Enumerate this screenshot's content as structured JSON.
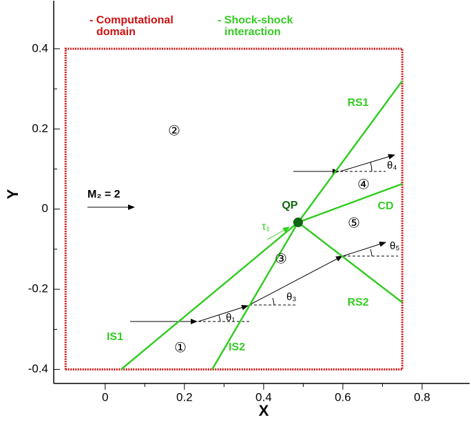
{
  "chart_data": {
    "type": "line",
    "xlabel": "X",
    "ylabel": "Y",
    "xlim": [
      -0.13,
      0.92
    ],
    "ylim": [
      -0.435,
      0.52
    ],
    "xticks": [
      0,
      0.2,
      0.4,
      0.6,
      0.8
    ],
    "yticks": [
      -0.4,
      -0.2,
      0,
      0.2,
      0.4
    ],
    "legend": [
      {
        "lines": [
          "- Computational",
          "domain"
        ],
        "color": "#cc1111"
      },
      {
        "lines": [
          "- Shock-shock",
          "interaction"
        ],
        "color": "#33cc22"
      }
    ],
    "domain": {
      "x": [
        -0.1,
        0.75,
        0.75,
        -0.1,
        -0.1
      ],
      "values": [
        -0.4,
        -0.4,
        0.4,
        0.4,
        -0.4
      ],
      "color": "#cc1111"
    },
    "series": [
      {
        "name": "IS1",
        "color": "#33cc22",
        "x": [
          0.04,
          0.487
        ],
        "values": [
          -0.4,
          -0.033
        ]
      },
      {
        "name": "IS2",
        "color": "#33cc22",
        "x": [
          0.27,
          0.487
        ],
        "values": [
          -0.4,
          -0.033
        ]
      },
      {
        "name": "RS1",
        "color": "#33cc22",
        "x": [
          0.487,
          0.75
        ],
        "values": [
          -0.033,
          0.32
        ]
      },
      {
        "name": "CD",
        "color": "#33cc22",
        "x": [
          0.487,
          0.75
        ],
        "values": [
          -0.033,
          0.063
        ]
      },
      {
        "name": "RS2",
        "color": "#33cc22",
        "x": [
          0.487,
          0.75
        ],
        "values": [
          -0.033,
          -0.233
        ]
      }
    ],
    "point": {
      "label": "QP",
      "x": 0.487,
      "y": -0.033,
      "color": "#116611"
    },
    "annotations": {
      "mach": "M₂ = 2",
      "tau": "τ₁",
      "regions": [
        "①",
        "②",
        "③",
        "④",
        "⑤"
      ],
      "angles": [
        "θ₁",
        "θ₃",
        "θ₄",
        "θ₅"
      ]
    }
  }
}
